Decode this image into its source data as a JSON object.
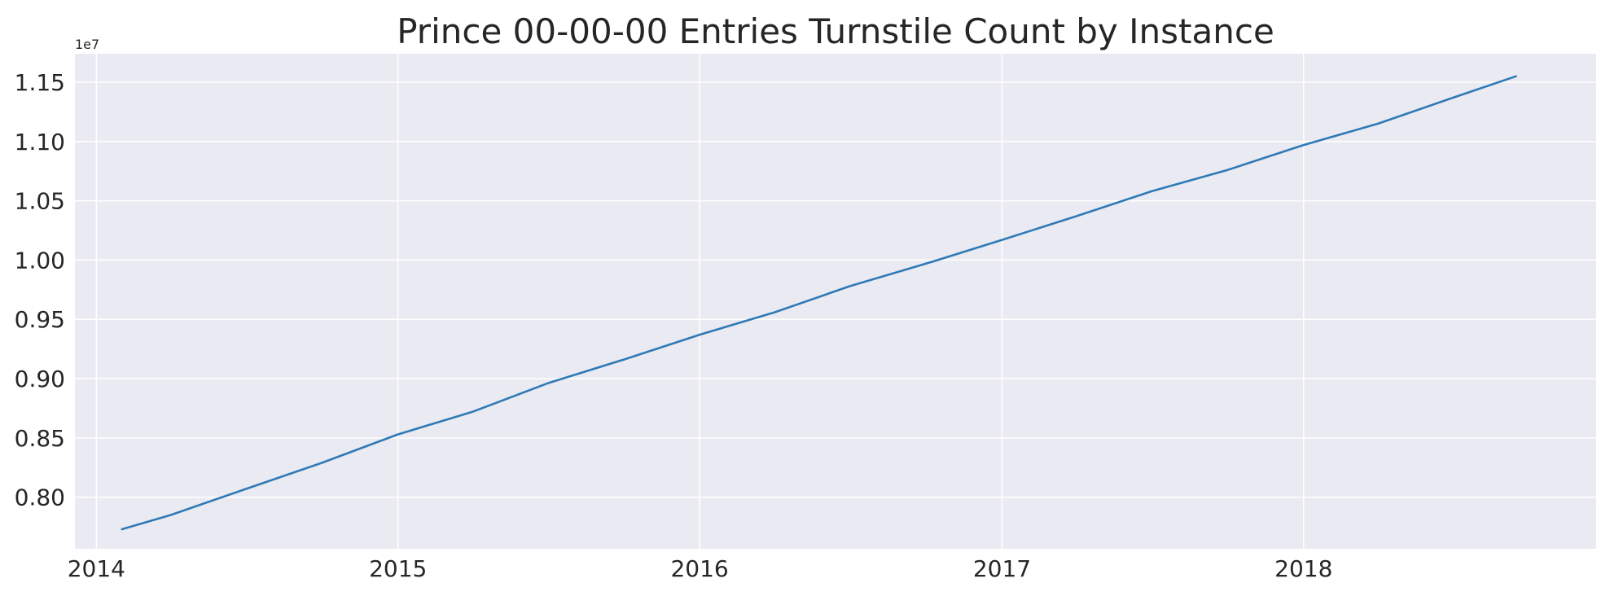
{
  "chart_data": {
    "type": "line",
    "title": "Prince 00-00-00 Entries Turnstile Count by Instance",
    "xlabel": "",
    "ylabel": "",
    "x_axis_kind": "date",
    "xlim": [
      "2013-12-06",
      "2018-12-21"
    ],
    "ylim": [
      7.565,
      11.74
    ],
    "y_offset_label": "1e7",
    "x_ticks": [
      {
        "value": "2014-01-01",
        "label": "2014"
      },
      {
        "value": "2015-01-01",
        "label": "2015"
      },
      {
        "value": "2016-01-01",
        "label": "2016"
      },
      {
        "value": "2017-01-01",
        "label": "2017"
      },
      {
        "value": "2018-01-01",
        "label": "2018"
      }
    ],
    "y_ticks": [
      {
        "value": 8.0,
        "label": "0.80"
      },
      {
        "value": 8.5,
        "label": "0.85"
      },
      {
        "value": 9.0,
        "label": "0.90"
      },
      {
        "value": 9.5,
        "label": "0.95"
      },
      {
        "value": 10.0,
        "label": "1.00"
      },
      {
        "value": 10.5,
        "label": "1.05"
      },
      {
        "value": 11.0,
        "label": "1.10"
      },
      {
        "value": 11.5,
        "label": "1.15"
      }
    ],
    "grid": true,
    "series": [
      {
        "color": "#2F7AB6",
        "points": [
          {
            "x": "2014-02-01",
            "y": 7.73
          },
          {
            "x": "2014-04-01",
            "y": 7.85
          },
          {
            "x": "2014-07-01",
            "y": 8.07
          },
          {
            "x": "2014-10-01",
            "y": 8.29
          },
          {
            "x": "2015-01-01",
            "y": 8.53
          },
          {
            "x": "2015-04-01",
            "y": 8.72
          },
          {
            "x": "2015-07-01",
            "y": 8.96
          },
          {
            "x": "2015-10-01",
            "y": 9.16
          },
          {
            "x": "2016-01-01",
            "y": 9.37
          },
          {
            "x": "2016-04-01",
            "y": 9.56
          },
          {
            "x": "2016-07-01",
            "y": 9.78
          },
          {
            "x": "2016-10-01",
            "y": 9.97
          },
          {
            "x": "2017-01-01",
            "y": 10.17
          },
          {
            "x": "2017-04-01",
            "y": 10.37
          },
          {
            "x": "2017-07-01",
            "y": 10.58
          },
          {
            "x": "2017-10-01",
            "y": 10.76
          },
          {
            "x": "2018-01-01",
            "y": 10.97
          },
          {
            "x": "2018-04-01",
            "y": 11.15
          },
          {
            "x": "2018-07-01",
            "y": 11.37
          },
          {
            "x": "2018-09-15",
            "y": 11.55
          }
        ]
      }
    ]
  }
}
